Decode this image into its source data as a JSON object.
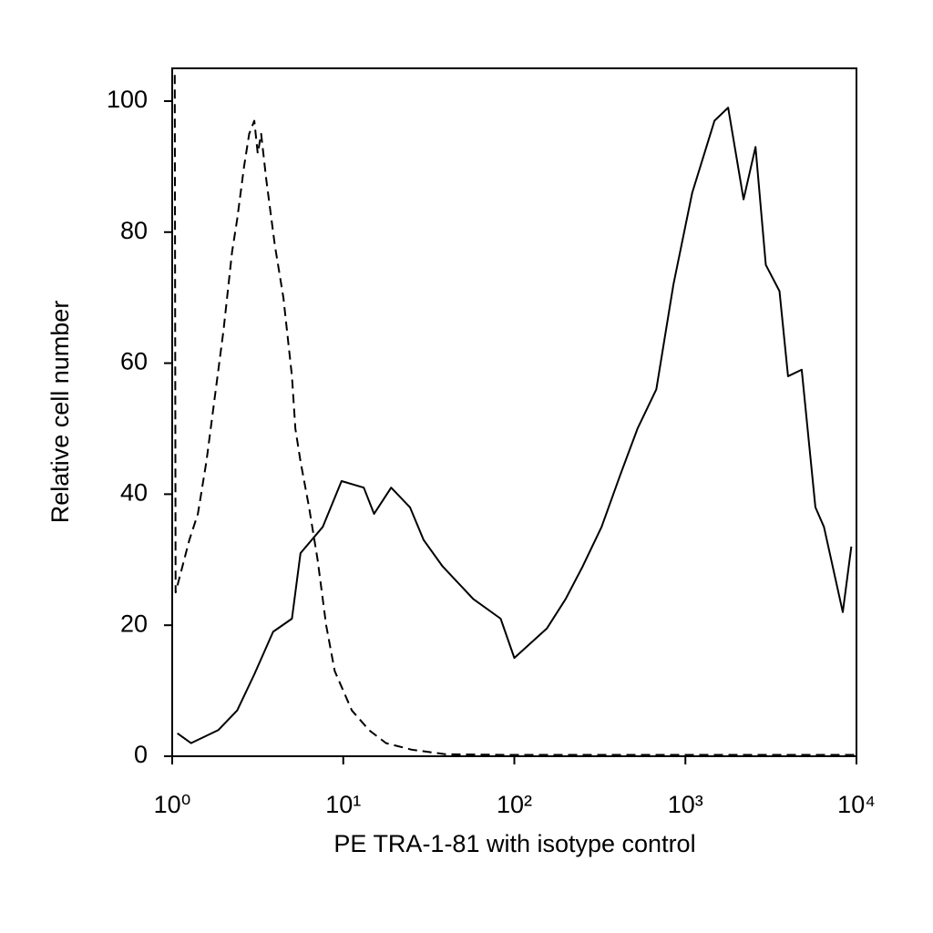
{
  "chart_data": {
    "type": "line",
    "x_label": "PE TRA-1-81 with isotype control",
    "y_label": "Relative cell number",
    "xscale": "log",
    "xlim": [
      1,
      10000
    ],
    "xticks": [
      {
        "value": 1,
        "label": "10⁰"
      },
      {
        "value": 10,
        "label": "10¹"
      },
      {
        "value": 100,
        "label": "10²"
      },
      {
        "value": 1000,
        "label": "10³"
      },
      {
        "value": 10000,
        "label": "10⁴"
      }
    ],
    "ylim": [
      0,
      105
    ],
    "yticks": [
      0,
      20,
      40,
      60,
      80,
      100
    ],
    "grid": false,
    "series": [
      {
        "color": "#000000",
        "dash": "solid",
        "x": [
          1.072,
          1.288,
          1.862,
          2.399,
          3.02,
          3.89,
          5.012,
          5.623,
          7.586,
          9.772,
          13.18,
          15.14,
          19.05,
          24.55,
          29.51,
          38.02,
          57.54,
          83.18,
          100,
          154.9,
          199.5,
          251.2,
          323.6,
          416.9,
          524.8,
          676.1,
          851.1,
          1096,
          1479,
          1778,
          2188,
          2570,
          2951,
          3548,
          3981,
          4786,
          5754,
          6457,
          8318,
          9333
        ],
        "values": [
          3.5,
          2,
          4,
          7,
          12.5,
          19,
          21,
          31,
          35,
          42,
          41,
          37,
          41,
          38,
          33,
          29,
          24,
          21,
          15,
          19.5,
          24,
          29,
          35,
          43,
          50,
          56,
          72,
          86,
          97,
          99,
          85,
          93,
          75,
          71,
          58,
          59,
          38,
          35,
          22,
          32
        ]
      },
      {
        "color": "#000000",
        "dash": "dashed",
        "x": [
          1.035,
          1.047,
          1.122,
          1.259,
          1.413,
          1.585,
          1.778,
          1.995,
          2.239,
          2.399,
          2.63,
          2.818,
          3.02,
          3.162,
          3.311,
          3.548,
          3.981,
          4.467,
          5.012,
          5.248,
          5.623,
          6.31,
          7.079,
          7.943,
          8.913,
          11.22,
          14.13,
          17.78,
          25.12,
          39.81,
          100,
          1000,
          10000
        ],
        "values": [
          104,
          25,
          28,
          33,
          37,
          45,
          55,
          65,
          77,
          82,
          90,
          95,
          97,
          92,
          95,
          88,
          78,
          70,
          58,
          50,
          45,
          38,
          30,
          20,
          13,
          7,
          4,
          2,
          1,
          0.3,
          0.2,
          0.2,
          0.2
        ]
      }
    ]
  }
}
